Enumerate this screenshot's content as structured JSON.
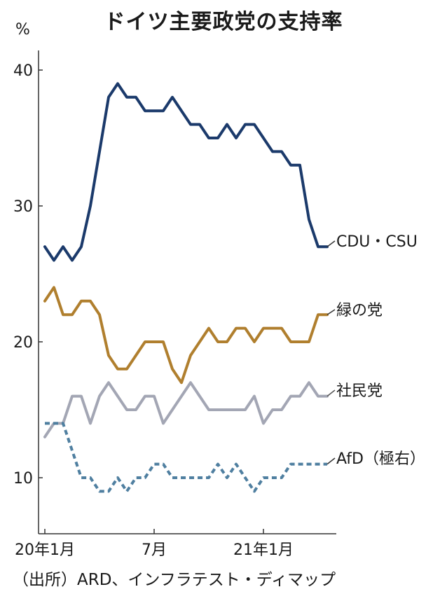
{
  "title": "ドイツ主要政党の支持率",
  "unit": "%",
  "source": "（出所）ARD、インフラテスト・ディマップ",
  "x_ticks": [
    {
      "label": "20年1月",
      "x": 0
    },
    {
      "label": "7月",
      "x": 12
    },
    {
      "label": "21年1月",
      "x": 24
    }
  ],
  "y_ticks": [
    "10",
    "20",
    "30",
    "40"
  ],
  "chart_data": {
    "type": "line",
    "title": "ドイツ主要政党の支持率",
    "ylabel": "%",
    "ylim": [
      7,
      42
    ],
    "xlim": [
      -0.3,
      32.5
    ],
    "x": [
      0,
      1,
      2,
      3,
      4,
      5,
      6,
      7,
      8,
      9,
      10,
      11,
      12,
      13,
      14,
      15,
      16,
      17,
      18,
      19,
      20,
      21,
      22,
      23,
      24,
      25,
      26,
      27,
      28,
      29,
      30,
      31
    ],
    "series": [
      {
        "name": "CDU・CSU",
        "color": "#1b3a6b",
        "dashed": false,
        "values": [
          27,
          26,
          27,
          26,
          27,
          30,
          34,
          38,
          39,
          38,
          38,
          37,
          37,
          37,
          38,
          37,
          36,
          36,
          35,
          35,
          36,
          35,
          36,
          36,
          35,
          34,
          34,
          33,
          33,
          29,
          27,
          27
        ]
      },
      {
        "name": "緑の党",
        "color": "#b07f2e",
        "dashed": false,
        "values": [
          23,
          24,
          22,
          22,
          23,
          23,
          22,
          19,
          18,
          18,
          19,
          20,
          20,
          20,
          18,
          17,
          19,
          20,
          21,
          20,
          20,
          21,
          21,
          20,
          21,
          21,
          21,
          20,
          20,
          20,
          22,
          22
        ]
      },
      {
        "name": "社民党",
        "color": "#a3a6b4",
        "dashed": false,
        "values": [
          13,
          14,
          14,
          16,
          16,
          14,
          16,
          17,
          16,
          15,
          15,
          16,
          16,
          14,
          15,
          16,
          17,
          16,
          15,
          15,
          15,
          15,
          15,
          16,
          14,
          15,
          15,
          16,
          16,
          17,
          16,
          16
        ]
      },
      {
        "name": "AfD（極右）",
        "color": "#4f7fa0",
        "dashed": true,
        "values": [
          14,
          14,
          14,
          12,
          10,
          10,
          9,
          9,
          10,
          9,
          10,
          10,
          11,
          11,
          10,
          10,
          10,
          10,
          10,
          11,
          10,
          11,
          10,
          9,
          10,
          10,
          10,
          11,
          11,
          11,
          11,
          11
        ]
      }
    ]
  }
}
